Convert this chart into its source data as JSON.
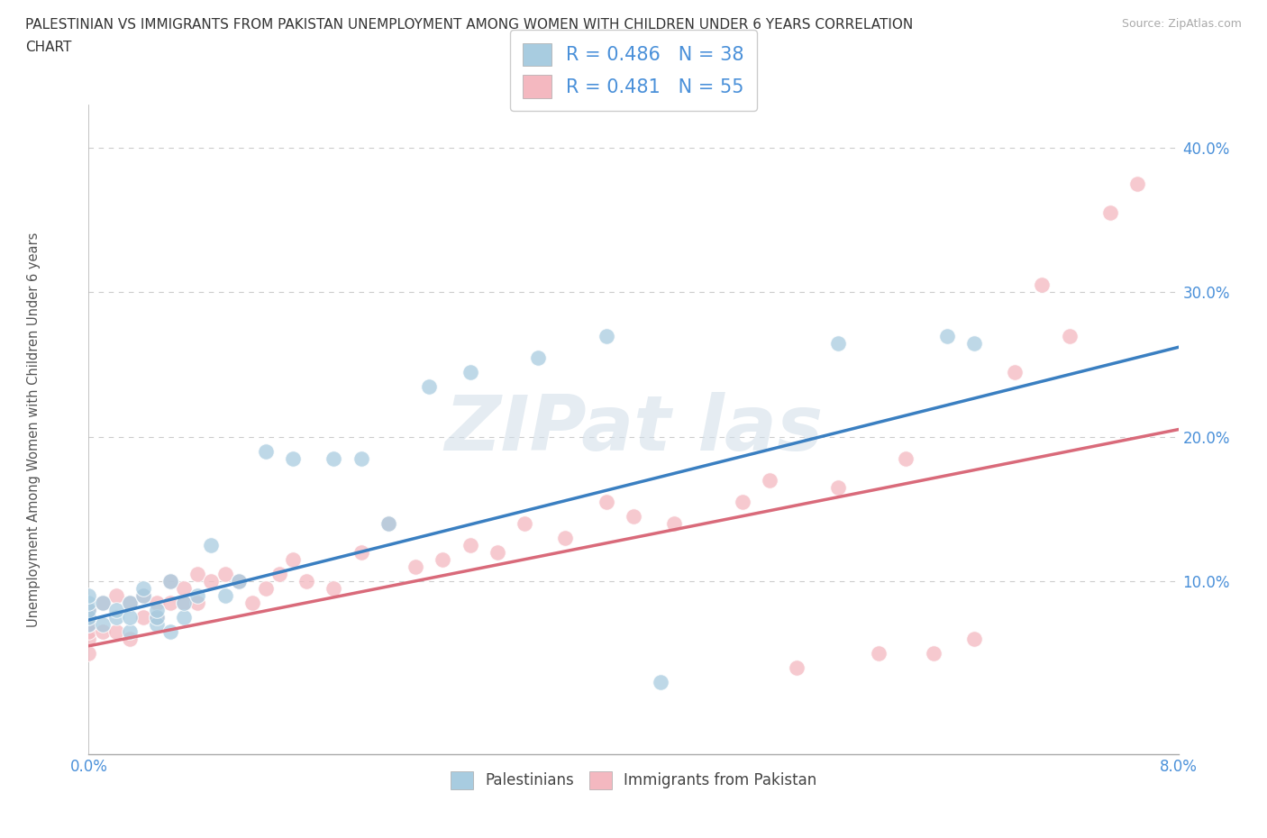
{
  "title_line1": "PALESTINIAN VS IMMIGRANTS FROM PAKISTAN UNEMPLOYMENT AMONG WOMEN WITH CHILDREN UNDER 6 YEARS CORRELATION",
  "title_line2": "CHART",
  "source": "Source: ZipAtlas.com",
  "ylabel": "Unemployment Among Women with Children Under 6 years",
  "xlim": [
    0.0,
    0.08
  ],
  "ylim": [
    -0.02,
    0.43
  ],
  "ytick_vals": [
    0.0,
    0.1,
    0.2,
    0.3,
    0.4
  ],
  "ytick_labels": [
    "",
    "10.0%",
    "20.0%",
    "30.0%",
    "40.0%"
  ],
  "xtick_vals": [
    0.0,
    0.08
  ],
  "xtick_labels": [
    "0.0%",
    "8.0%"
  ],
  "grid_color": "#cccccc",
  "bg_color": "#ffffff",
  "blue_scatter": "#a8cce0",
  "pink_scatter": "#f4b8c0",
  "blue_line": "#3a7fc1",
  "pink_line": "#d96a7a",
  "label_color": "#4a90d9",
  "R_blue": "0.486",
  "N_blue": "38",
  "R_pink": "0.481",
  "N_pink": "55",
  "pal_x": [
    0.0,
    0.0,
    0.0,
    0.0,
    0.0,
    0.001,
    0.001,
    0.002,
    0.002,
    0.003,
    0.003,
    0.003,
    0.004,
    0.004,
    0.005,
    0.005,
    0.005,
    0.006,
    0.006,
    0.007,
    0.007,
    0.008,
    0.009,
    0.01,
    0.011,
    0.013,
    0.015,
    0.018,
    0.02,
    0.022,
    0.025,
    0.028,
    0.033,
    0.038,
    0.042,
    0.055,
    0.063,
    0.065
  ],
  "pal_y": [
    0.07,
    0.075,
    0.08,
    0.085,
    0.09,
    0.07,
    0.085,
    0.075,
    0.08,
    0.065,
    0.075,
    0.085,
    0.09,
    0.095,
    0.07,
    0.075,
    0.08,
    0.065,
    0.1,
    0.075,
    0.085,
    0.09,
    0.125,
    0.09,
    0.1,
    0.19,
    0.185,
    0.185,
    0.185,
    0.14,
    0.235,
    0.245,
    0.255,
    0.27,
    0.03,
    0.265,
    0.27,
    0.265
  ],
  "pak_x": [
    0.0,
    0.0,
    0.0,
    0.0,
    0.0,
    0.0,
    0.001,
    0.001,
    0.002,
    0.002,
    0.003,
    0.003,
    0.004,
    0.004,
    0.005,
    0.005,
    0.006,
    0.006,
    0.007,
    0.007,
    0.008,
    0.008,
    0.009,
    0.01,
    0.011,
    0.012,
    0.013,
    0.014,
    0.015,
    0.016,
    0.018,
    0.02,
    0.022,
    0.024,
    0.026,
    0.028,
    0.03,
    0.032,
    0.035,
    0.038,
    0.04,
    0.043,
    0.048,
    0.05,
    0.052,
    0.055,
    0.058,
    0.06,
    0.062,
    0.065,
    0.068,
    0.07,
    0.072,
    0.075,
    0.077
  ],
  "pak_y": [
    0.05,
    0.06,
    0.065,
    0.07,
    0.075,
    0.08,
    0.065,
    0.085,
    0.065,
    0.09,
    0.06,
    0.085,
    0.075,
    0.09,
    0.075,
    0.085,
    0.085,
    0.1,
    0.085,
    0.095,
    0.085,
    0.105,
    0.1,
    0.105,
    0.1,
    0.085,
    0.095,
    0.105,
    0.115,
    0.1,
    0.095,
    0.12,
    0.14,
    0.11,
    0.115,
    0.125,
    0.12,
    0.14,
    0.13,
    0.155,
    0.145,
    0.14,
    0.155,
    0.17,
    0.04,
    0.165,
    0.05,
    0.185,
    0.05,
    0.06,
    0.245,
    0.305,
    0.27,
    0.355,
    0.375
  ]
}
